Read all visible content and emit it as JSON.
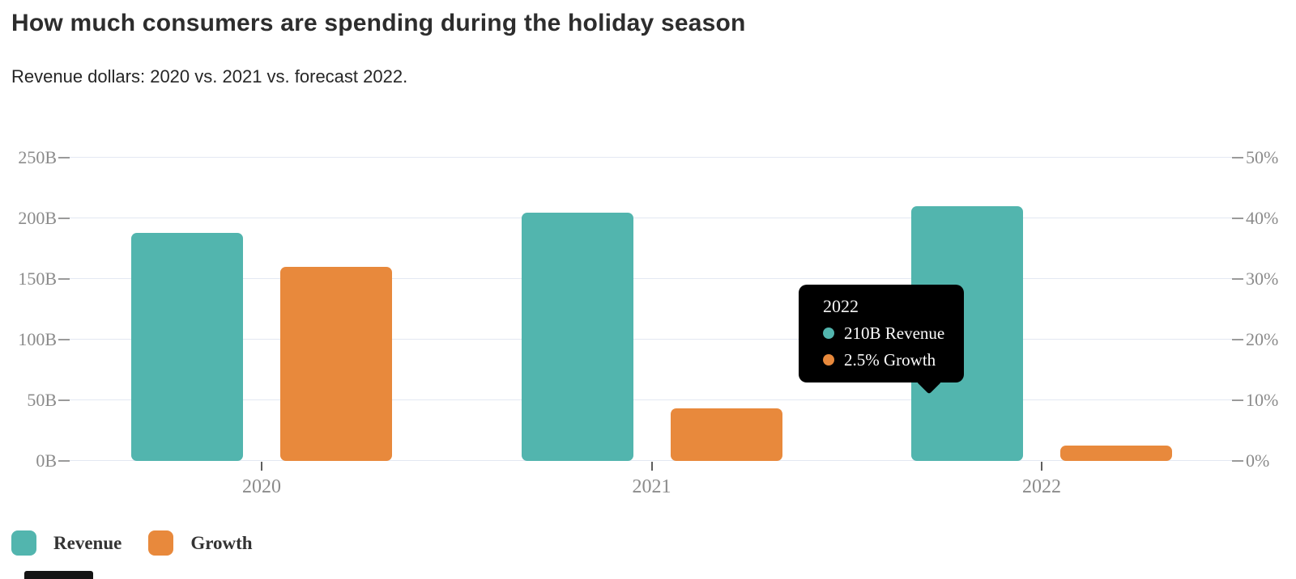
{
  "header": {
    "title": "How much consumers are spending during the holiday season",
    "subtitle": "Revenue dollars: 2020 vs. 2021 vs. forecast 2022."
  },
  "chart_data": {
    "type": "bar",
    "title": "How much consumers are spending during the holiday season",
    "subtitle": "Revenue dollars: 2020 vs. 2021 vs. forecast 2022.",
    "categories": [
      "2020",
      "2021",
      "2022"
    ],
    "series": [
      {
        "name": "Revenue",
        "axis": "left",
        "unit": "B",
        "color": "#52B5AE",
        "values": [
          188,
          204.5,
          210
        ]
      },
      {
        "name": "Growth",
        "axis": "right",
        "unit": "%",
        "color": "#E8893C",
        "values": [
          32,
          8.6,
          2.5
        ]
      }
    ],
    "left_axis": {
      "min": 0,
      "max": 250,
      "step": 50,
      "tick_labels": [
        "0B",
        "50B",
        "100B",
        "150B",
        "200B",
        "250B"
      ]
    },
    "right_axis": {
      "min": 0,
      "max": 50,
      "step": 10,
      "tick_labels": [
        "0%",
        "10%",
        "20%",
        "30%",
        "40%",
        "50%"
      ]
    },
    "grid": true,
    "legend_position": "bottom-left"
  },
  "tooltip": {
    "title": "2022",
    "items": [
      {
        "label": "210B Revenue",
        "color": "#52B5AE"
      },
      {
        "label": "2.5% Growth",
        "color": "#E8893C"
      }
    ]
  },
  "legend": {
    "items": [
      {
        "label": "Revenue",
        "color": "#52B5AE"
      },
      {
        "label": "Growth",
        "color": "#E8893C"
      }
    ]
  },
  "colors": {
    "revenue": "#52B5AE",
    "growth": "#E8893C",
    "grid": "#E3E8F2",
    "axis_text": "#8B8B8B",
    "tooltip_bg": "#000000"
  }
}
